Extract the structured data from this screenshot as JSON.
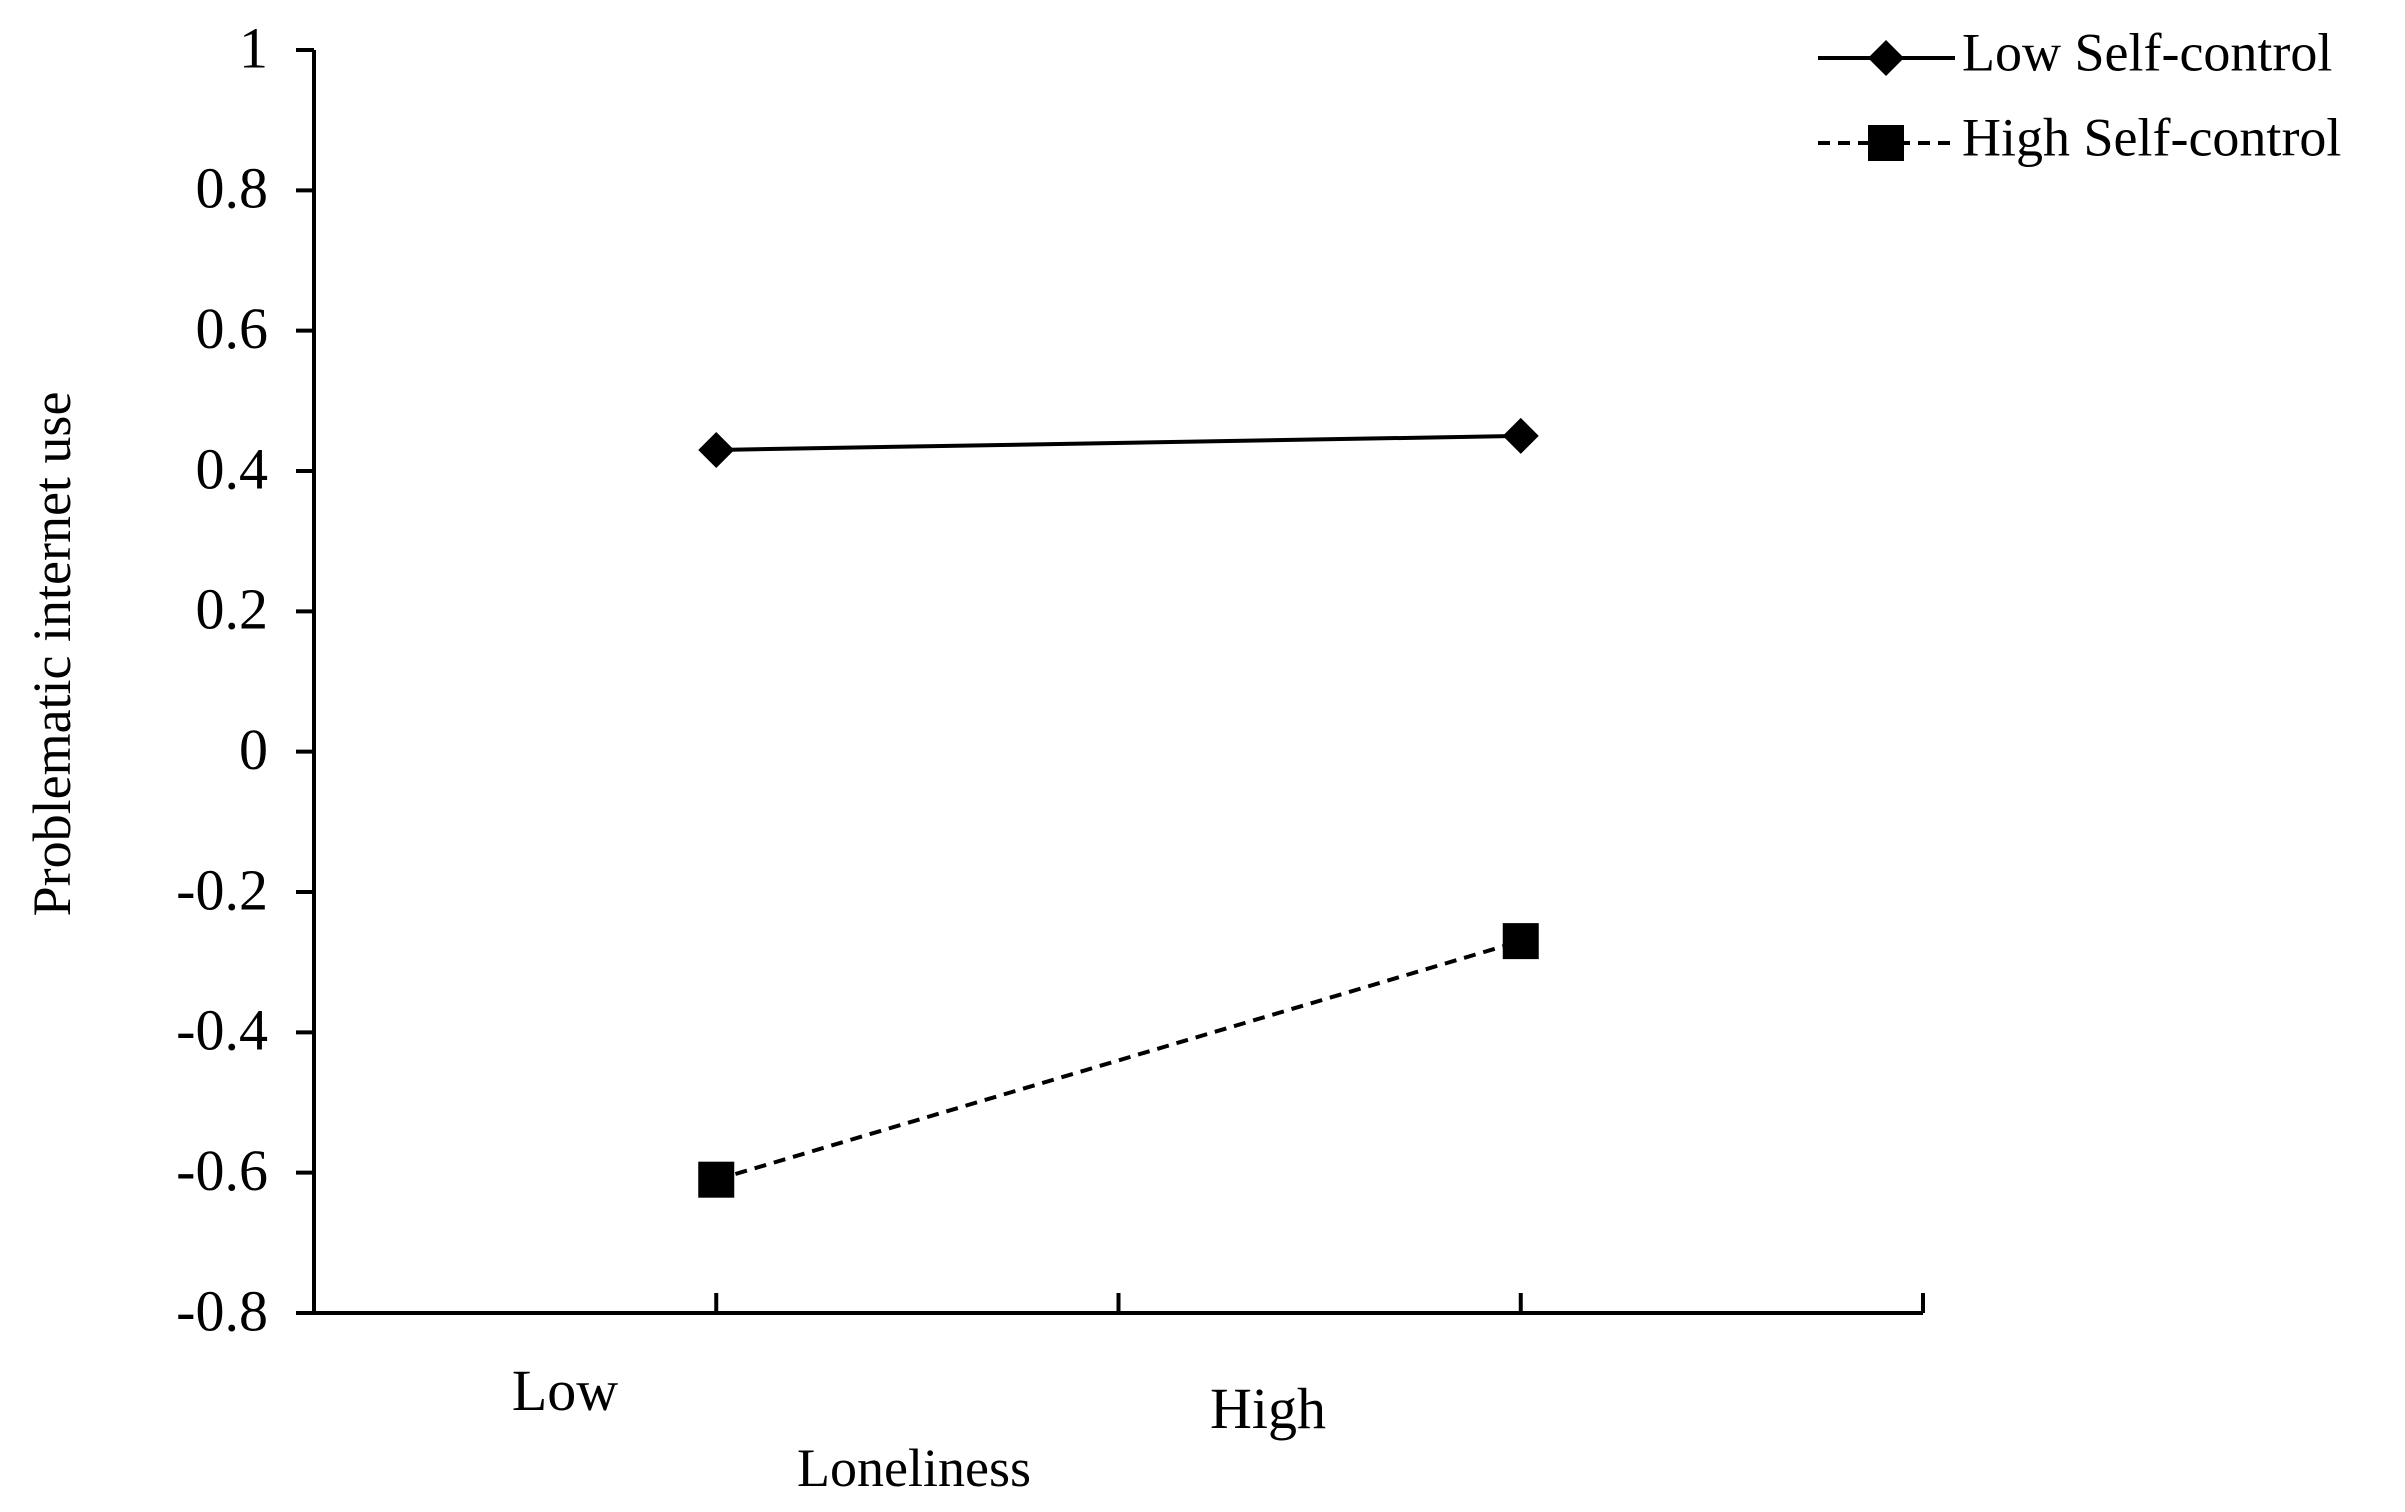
{
  "chart_data": {
    "type": "line",
    "title": "",
    "xlabel": "Loneliness",
    "ylabel": "Problematic internet use",
    "categories": [
      "Low",
      "High"
    ],
    "ylim": [
      -0.8,
      1
    ],
    "yticks": [
      "1",
      "0.8",
      "0.6",
      "0.4",
      "0.2",
      "0",
      "-0.2",
      "-0.4",
      "-0.6",
      "-0.8"
    ],
    "ytick_values": [
      1,
      0.8,
      0.6,
      0.4,
      0.2,
      0,
      -0.2,
      -0.4,
      -0.6,
      -0.8
    ],
    "grid": false,
    "legend_position": "top-right",
    "series": [
      {
        "name": "Low Self-control",
        "values": [
          0.43,
          0.45
        ],
        "line_style": "solid",
        "marker": "diamond",
        "color": "#000000"
      },
      {
        "name": "High Self-control",
        "values": [
          -0.61,
          -0.27
        ],
        "line_style": "dashed",
        "marker": "square",
        "color": "#000000"
      }
    ]
  }
}
